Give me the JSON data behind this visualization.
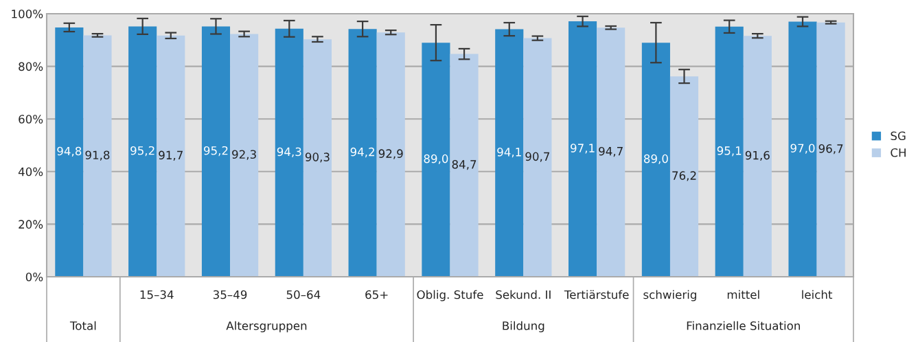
{
  "chart_data": {
    "type": "bar",
    "categories": [
      null,
      "15–34",
      "35–49",
      "50–64",
      "65+",
      "Oblig. Stufe",
      "Sekund. II",
      "Tertiärstufe",
      "schwierig",
      "mittel",
      "leicht"
    ],
    "series": [
      {
        "name": "SG",
        "color": "#2e8bc8",
        "values": [
          94.8,
          95.2,
          95.2,
          94.3,
          94.2,
          89.0,
          94.1,
          97.1,
          89.0,
          95.1,
          97.0
        ],
        "errors": [
          1.6,
          3.0,
          2.9,
          3.1,
          2.9,
          6.8,
          2.5,
          1.9,
          7.6,
          2.4,
          1.8
        ],
        "value_labels": [
          "94,8",
          "95,2",
          "95,2",
          "94,3",
          "94,2",
          "89,0",
          "94,1",
          "97,1",
          "89,0",
          "95,1",
          "97,0"
        ]
      },
      {
        "name": "CH",
        "color": "#b8cfea",
        "values": [
          91.8,
          91.7,
          92.3,
          90.3,
          92.9,
          84.7,
          90.7,
          94.7,
          76.2,
          91.6,
          96.7
        ],
        "errors": [
          0.6,
          1.1,
          1.0,
          1.0,
          0.8,
          2.0,
          0.8,
          0.6,
          2.6,
          0.8,
          0.5
        ],
        "value_labels": [
          "91,8",
          "91,7",
          "92,3",
          "90,3",
          "92,9",
          "84,7",
          "90,7",
          "94,7",
          "76,2",
          "91,6",
          "96,7"
        ]
      }
    ],
    "ylim": [
      0,
      100
    ],
    "yticks": [
      {
        "value": 0,
        "label": "0%"
      },
      {
        "value": 20,
        "label": "20%"
      },
      {
        "value": 40,
        "label": "40%"
      },
      {
        "value": 60,
        "label": "60%"
      },
      {
        "value": 80,
        "label": "80%"
      },
      {
        "value": 100,
        "label": "100%"
      }
    ],
    "grid": "y",
    "legend": "right",
    "annotations": [
      "Total",
      "Altersgruppen",
      "Bildung",
      "Finanzielle Situation"
    ]
  }
}
